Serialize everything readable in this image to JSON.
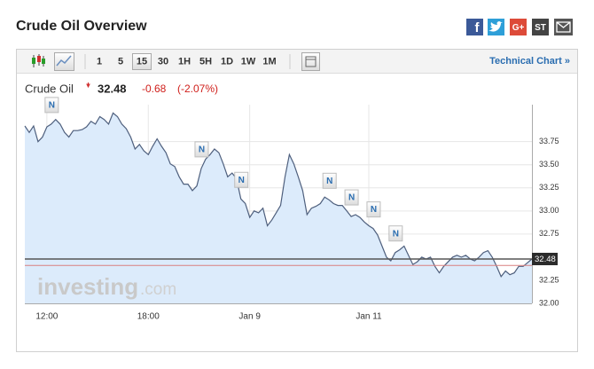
{
  "header": {
    "title": "Crude Oil Overview",
    "share": [
      "G+",
      "ST"
    ]
  },
  "toolbar": {
    "intervals": [
      "1",
      "5",
      "15",
      "30",
      "1H",
      "5H",
      "1D",
      "1W",
      "1M"
    ],
    "selected": "15",
    "link": "Technical Chart »"
  },
  "quote": {
    "name": "Crude Oil",
    "price": "32.48",
    "change": "-0.68",
    "change_pct": "(-2.07%)"
  },
  "watermark": {
    "brand": "investing",
    "suffix": ".com"
  },
  "chart_data": {
    "type": "line",
    "color": "#4e5f7d",
    "fill": "#dcebfb",
    "values": [
      33.92,
      33.85,
      33.92,
      33.75,
      33.8,
      33.91,
      33.94,
      33.99,
      33.94,
      33.85,
      33.8,
      33.87,
      33.87,
      33.88,
      33.91,
      33.97,
      33.94,
      34.02,
      33.99,
      33.94,
      34.06,
      34.02,
      33.94,
      33.89,
      33.8,
      33.67,
      33.72,
      33.65,
      33.61,
      33.7,
      33.78,
      33.7,
      33.63,
      33.51,
      33.48,
      33.37,
      33.29,
      33.29,
      33.22,
      33.27,
      33.46,
      33.56,
      33.61,
      33.67,
      33.63,
      33.51,
      33.37,
      33.41,
      33.35,
      33.13,
      33.08,
      32.93,
      33.0,
      32.98,
      33.03,
      32.84,
      32.9,
      32.98,
      33.06,
      33.37,
      33.61,
      33.51,
      33.37,
      33.22,
      32.96,
      33.03,
      33.05,
      33.08,
      33.15,
      33.12,
      33.08,
      33.06,
      33.06,
      33.0,
      32.94,
      32.96,
      32.93,
      32.88,
      32.84,
      32.81,
      32.74,
      32.62,
      32.5,
      32.46,
      32.55,
      32.58,
      32.62,
      32.52,
      32.42,
      32.45,
      32.5,
      32.48,
      32.5,
      32.4,
      32.33,
      32.4,
      32.45,
      32.5,
      32.52,
      32.5,
      32.52,
      32.48,
      32.46,
      32.5,
      32.55,
      32.57,
      32.5,
      32.4,
      32.29,
      32.35,
      32.31,
      32.33,
      32.4,
      32.4,
      32.44,
      32.48
    ],
    "xlim": [
      0,
      115
    ],
    "xticks": [
      {
        "value": 5,
        "label": "12:00"
      },
      {
        "value": 28,
        "label": "18:00"
      },
      {
        "value": 51,
        "label": "Jan 9"
      },
      {
        "value": 78,
        "label": "Jan 11"
      }
    ],
    "ylim": [
      32,
      34.15
    ],
    "yticks": [
      {
        "value": 32,
        "label": "32.00"
      },
      32.25,
      32.75,
      {
        "value": 33,
        "label": "33.00"
      },
      33.25,
      {
        "value": 33.5,
        "label": "33.50"
      },
      33.75
    ],
    "price_line": {
      "value": 32.48,
      "color": "#555555"
    },
    "reference_line": {
      "value": 32.41,
      "color": "#d98080"
    },
    "annotations": [
      {
        "label": "N",
        "x": 6
      },
      {
        "label": "N",
        "x": 40
      },
      {
        "label": "N",
        "x": 49
      },
      {
        "label": "N",
        "x": 69
      },
      {
        "label": "N",
        "x": 74
      },
      {
        "label": "N",
        "x": 79
      },
      {
        "label": "N",
        "x": 84
      }
    ],
    "grid": true
  }
}
